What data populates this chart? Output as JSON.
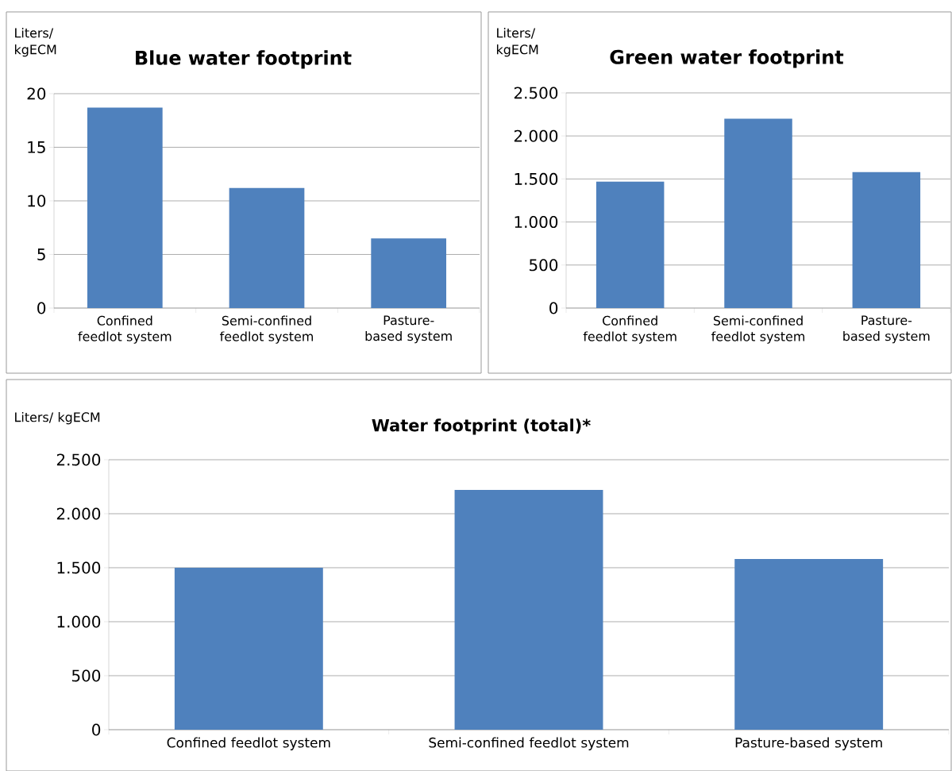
{
  "chart_data": [
    {
      "type": "bar",
      "title": "Blue water footprint",
      "ylabel": "Liters/ kgECM",
      "categories": [
        "Confined feedlot system",
        "Semi-confined feedlot system",
        "Pasture-based system"
      ],
      "values": [
        18.7,
        11.2,
        6.5
      ],
      "color": "#4f81bd",
      "ylim": [
        0,
        20
      ],
      "yticks": [
        0,
        5,
        10,
        15,
        20
      ],
      "grid": "y"
    },
    {
      "type": "bar",
      "title": "Green water footprint",
      "ylabel": "Liters/ kgECM",
      "categories": [
        "Confined feedlot system",
        "Semi-confined feedlot system",
        "Pasture-based system"
      ],
      "values": [
        1470,
        2200,
        1580
      ],
      "color": "#4f81bd",
      "ylim": [
        0,
        2500
      ],
      "yticks": [
        0,
        500,
        {
          "value": 1000,
          "label": "1.000"
        },
        {
          "value": 1500,
          "label": "1.500"
        },
        {
          "value": 2000,
          "label": "2.000"
        },
        {
          "value": 2500,
          "label": "2.500"
        }
      ],
      "grid": "y"
    },
    {
      "type": "bar",
      "title": "Water footprint (total)*",
      "ylabel": "Liters/ kgECM",
      "categories": [
        "Confined feedlot system",
        "Semi-confined feedlot system",
        "Pasture-based system"
      ],
      "values": [
        1500,
        2220,
        1580
      ],
      "color": "#4f81bd",
      "ylim": [
        0,
        2500
      ],
      "yticks": [
        0,
        500,
        {
          "value": 1000,
          "label": "1.000"
        },
        {
          "value": 1500,
          "label": "1.500"
        },
        {
          "value": 2000,
          "label": "2.000"
        },
        {
          "value": 2500,
          "label": "2.500"
        }
      ],
      "grid": "y"
    }
  ]
}
